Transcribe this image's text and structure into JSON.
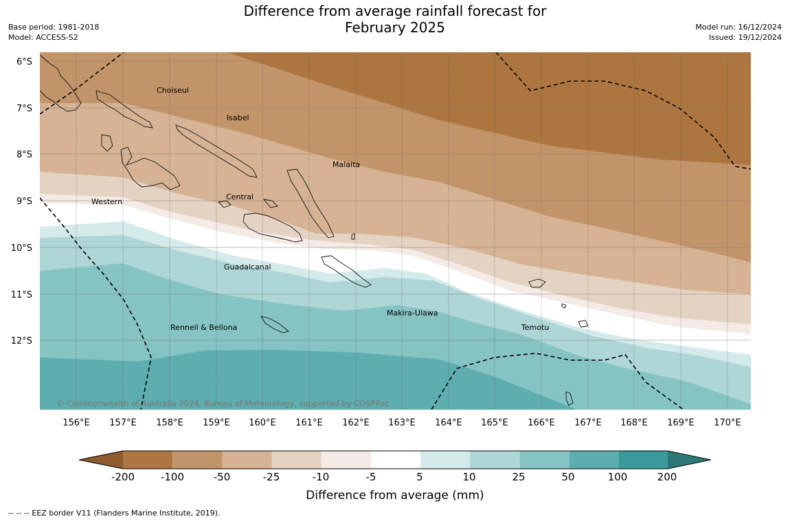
{
  "title_line1": "Difference from average rainfall forecast for",
  "title_line2": "February 2025",
  "base_period": "Base period: 1981-2018",
  "model": "Model: ACCESS-S2",
  "model_run": "Model run: 16/12/2024",
  "issued": "Issued: 19/12/2024",
  "lat_ticks": [
    "6°S",
    "7°S",
    "8°S",
    "9°S",
    "10°S",
    "11°S",
    "12°S"
  ],
  "lon_ticks": [
    "156°E",
    "157°E",
    "158°E",
    "159°E",
    "160°E",
    "161°E",
    "162°E",
    "163°E",
    "164°E",
    "165°E",
    "166°E",
    "167°E",
    "168°E",
    "169°E",
    "170°E"
  ],
  "regions": {
    "choiseul": "Choiseul",
    "isabel": "Isabel",
    "malaita": "Malaita",
    "western": "Western",
    "central": "Central",
    "guadalcanal": "Guadalcanal",
    "makira": "Makira-Ulawa",
    "rennell": "Rennell & Bellona",
    "temotu": "Temotu"
  },
  "copyright": "© Commonwealth of Australia 2024, Bureau of Meteorology, supported by COSPPac",
  "colorbar": {
    "title": "Difference from average (mm)",
    "labels": [
      "-200",
      "-100",
      "-50",
      "-25",
      "-10",
      "-5",
      "5",
      "10",
      "25",
      "50",
      "100",
      "200"
    ],
    "colors": [
      "#8f5a2e",
      "#ad7640",
      "#c2946a",
      "#d5b394",
      "#e4d3c3",
      "#f4ebe6",
      "#ffffff",
      "#d5eaea",
      "#aed6d6",
      "#86c3c3",
      "#5eadaf",
      "#3a9a9b",
      "#2e7878"
    ]
  },
  "legend_note": "--  --  -- EEZ border V11 (Flanders Marine Institute, 2019)."
}
